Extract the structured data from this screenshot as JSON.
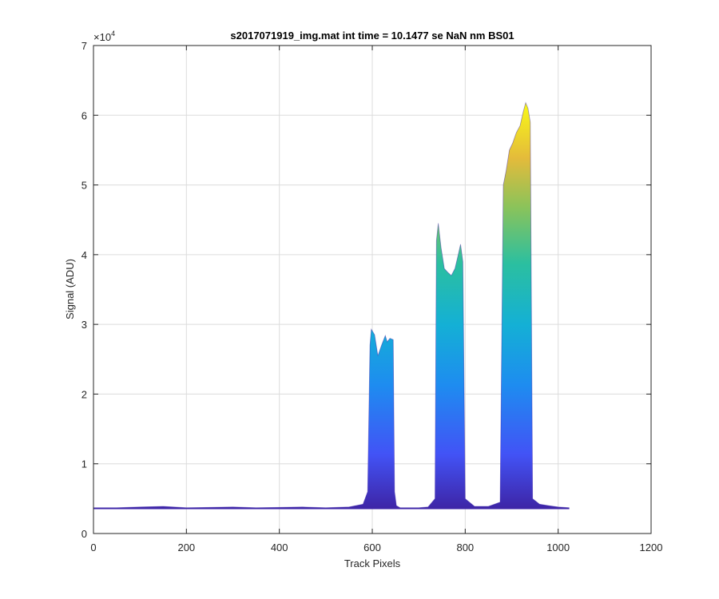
{
  "chart_data": {
    "type": "area",
    "title": "s2017071919_img.mat int time = 10.1477 se  NaN nm BS01",
    "xlabel": "Track Pixels",
    "ylabel": "Signal (ADU)",
    "xlim": [
      0,
      1200
    ],
    "ylim": [
      0,
      70000
    ],
    "x_ticks": [
      0,
      200,
      400,
      600,
      800,
      1000,
      1200
    ],
    "x_tick_labels": [
      "0",
      "200",
      "400",
      "600",
      "800",
      "1000",
      "1200"
    ],
    "y_ticks": [
      0,
      10000,
      20000,
      30000,
      40000,
      50000,
      60000,
      70000
    ],
    "y_tick_labels": [
      "0",
      "1",
      "2",
      "3",
      "4",
      "5",
      "6",
      "7"
    ],
    "y_exponent_label": {
      "base": "×10",
      "exp": "4"
    },
    "grid": true,
    "colormap": "parula",
    "series": [
      {
        "x": [
          0,
          50,
          100,
          150,
          200,
          250,
          300,
          350,
          400,
          450,
          500,
          550,
          580,
          590,
          595,
          598,
          605,
          612,
          620,
          628,
          632,
          638,
          645,
          648,
          652,
          660,
          680,
          700,
          720,
          735,
          738,
          742,
          748,
          755,
          762,
          770,
          778,
          785,
          790,
          795,
          800,
          820,
          850,
          875,
          882,
          888,
          895,
          902,
          910,
          918,
          925,
          930,
          935,
          940,
          945,
          960,
          980,
          1000,
          1024
        ],
        "y": [
          3700,
          3700,
          3800,
          3900,
          3700,
          3750,
          3800,
          3700,
          3750,
          3800,
          3700,
          3800,
          4200,
          6000,
          27000,
          29300,
          28500,
          25500,
          27000,
          28400,
          27500,
          28000,
          27800,
          6000,
          4000,
          3700,
          3700,
          3700,
          3800,
          5000,
          42000,
          44500,
          41000,
          38000,
          37500,
          37000,
          38000,
          40000,
          41500,
          39000,
          5000,
          3900,
          3900,
          4500,
          50000,
          52000,
          55000,
          56000,
          57500,
          58500,
          60500,
          61800,
          61000,
          59000,
          5000,
          4200,
          4000,
          3800,
          3700
        ]
      }
    ]
  }
}
